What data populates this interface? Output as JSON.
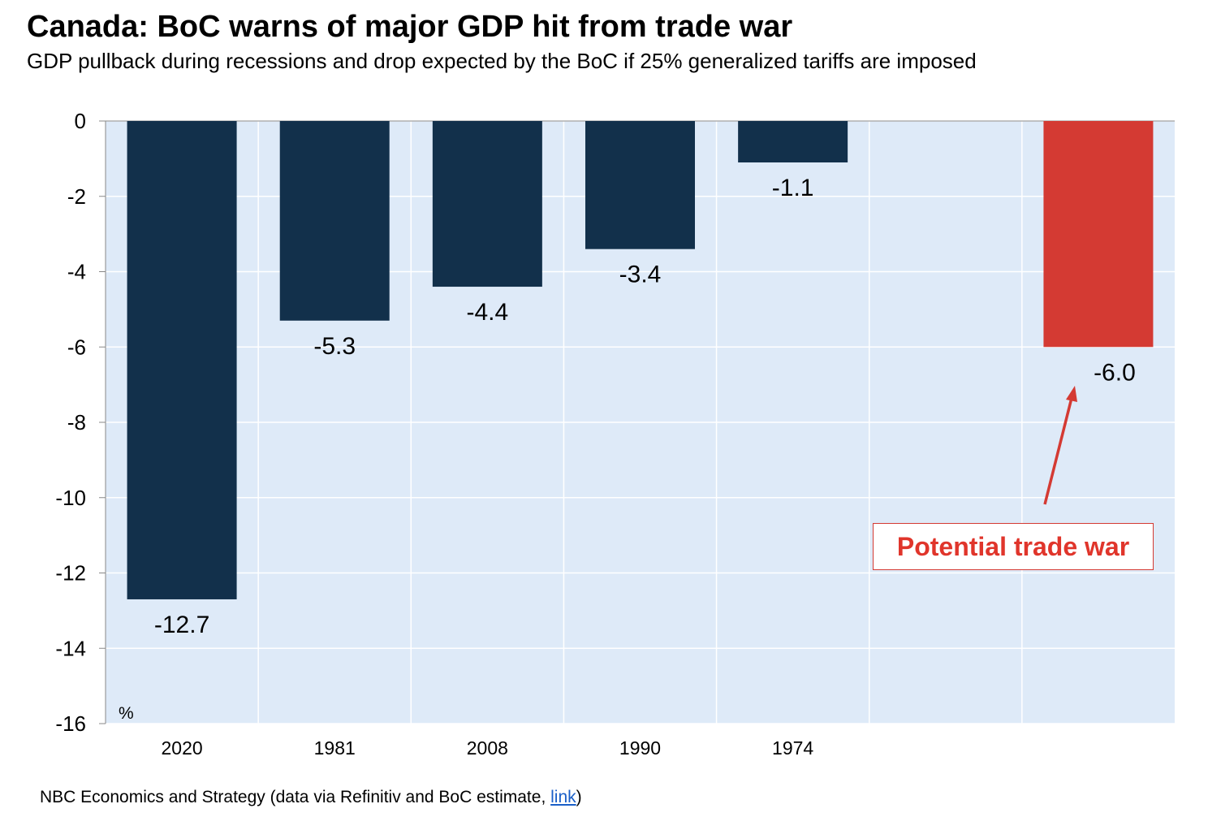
{
  "chart_data": {
    "type": "bar",
    "title": "Canada: BoC warns of major GDP hit from trade war",
    "subtitle": "GDP pullback during recessions and drop expected by the BoC if 25% generalized tariffs are imposed",
    "ylabel": "%",
    "xlabel": "",
    "ylim": [
      -16,
      0
    ],
    "yticks": [
      0,
      -2,
      -4,
      -6,
      -8,
      -10,
      -12,
      -14,
      -16
    ],
    "grid": true,
    "categories": [
      "2020",
      "1981",
      "2008",
      "1990",
      "1974",
      "",
      ""
    ],
    "values": [
      -12.7,
      -5.3,
      -4.4,
      -3.4,
      -1.1,
      null,
      -6.0
    ],
    "data_labels": [
      "-12.7",
      "-5.3",
      "-4.4",
      "-3.4",
      "-1.1",
      "",
      "-6.0"
    ],
    "bar_colors": [
      "#12304b",
      "#12304b",
      "#12304b",
      "#12304b",
      "#12304b",
      "#12304b",
      "#d43a33"
    ],
    "annotation": "Potential trade war",
    "plot_background": "#deeaf8"
  },
  "footer": {
    "source_text": "NBC Economics and Strategy (data via Refinitiv and BoC estimate, ",
    "link_text": "link",
    "close": ")"
  }
}
